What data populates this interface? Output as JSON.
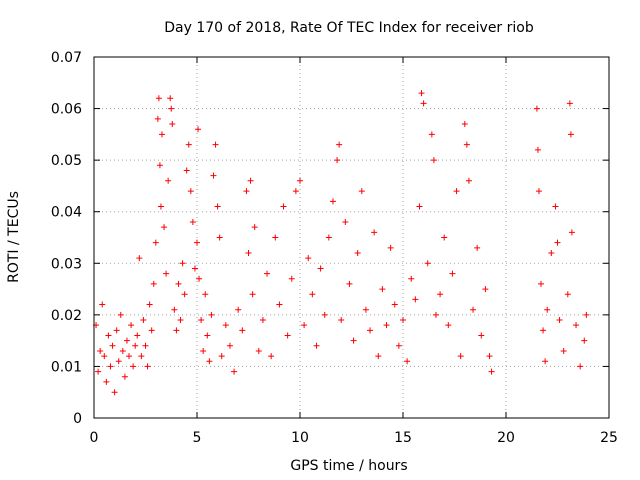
{
  "chart_data": {
    "type": "scatter",
    "title": "Day 170 of 2018, Rate Of TEC Index for receiver riob",
    "xlabel": "GPS time / hours",
    "ylabel": "ROTI / TECUs",
    "xlim": [
      0,
      25
    ],
    "ylim": [
      0,
      0.07
    ],
    "xticks": [
      0,
      5,
      10,
      15,
      20,
      25
    ],
    "xtick_labels": [
      "0",
      "5",
      "10",
      "15",
      "20",
      "25"
    ],
    "yticks": [
      0,
      0.01,
      0.02,
      0.03,
      0.04,
      0.05,
      0.06,
      0.07
    ],
    "ytick_labels": [
      "0",
      "0.01",
      "0.02",
      "0.03",
      "0.04",
      "0.05",
      "0.06",
      "0.07"
    ],
    "grid": true,
    "marker": "+",
    "color": "#ff0000",
    "data_gaps_hours": [
      [
        19.5,
        21.4
      ]
    ],
    "series": [
      {
        "name": "riob",
        "points": [
          [
            0.1,
            0.018
          ],
          [
            0.2,
            0.009
          ],
          [
            0.3,
            0.013
          ],
          [
            0.4,
            0.022
          ],
          [
            0.5,
            0.012
          ],
          [
            0.6,
            0.007
          ],
          [
            0.7,
            0.016
          ],
          [
            0.8,
            0.01
          ],
          [
            0.9,
            0.014
          ],
          [
            1.0,
            0.005
          ],
          [
            1.1,
            0.017
          ],
          [
            1.2,
            0.011
          ],
          [
            1.3,
            0.02
          ],
          [
            1.4,
            0.013
          ],
          [
            1.5,
            0.008
          ],
          [
            1.6,
            0.015
          ],
          [
            1.7,
            0.012
          ],
          [
            1.8,
            0.018
          ],
          [
            1.9,
            0.01
          ],
          [
            2.0,
            0.014
          ],
          [
            2.1,
            0.016
          ],
          [
            2.2,
            0.031
          ],
          [
            2.3,
            0.012
          ],
          [
            2.4,
            0.019
          ],
          [
            2.5,
            0.014
          ],
          [
            2.6,
            0.01
          ],
          [
            2.7,
            0.022
          ],
          [
            2.8,
            0.017
          ],
          [
            2.9,
            0.026
          ],
          [
            3.0,
            0.034
          ],
          [
            3.1,
            0.058
          ],
          [
            3.15,
            0.062
          ],
          [
            3.2,
            0.049
          ],
          [
            3.25,
            0.041
          ],
          [
            3.3,
            0.055
          ],
          [
            3.4,
            0.037
          ],
          [
            3.5,
            0.028
          ],
          [
            3.6,
            0.046
          ],
          [
            3.7,
            0.062
          ],
          [
            3.75,
            0.06
          ],
          [
            3.8,
            0.057
          ],
          [
            3.9,
            0.021
          ],
          [
            4.0,
            0.017
          ],
          [
            4.1,
            0.026
          ],
          [
            4.2,
            0.019
          ],
          [
            4.3,
            0.03
          ],
          [
            4.4,
            0.024
          ],
          [
            4.5,
            0.048
          ],
          [
            4.6,
            0.053
          ],
          [
            4.7,
            0.044
          ],
          [
            4.8,
            0.038
          ],
          [
            4.9,
            0.029
          ],
          [
            5.0,
            0.034
          ],
          [
            5.05,
            0.056
          ],
          [
            5.1,
            0.027
          ],
          [
            5.2,
            0.019
          ],
          [
            5.3,
            0.013
          ],
          [
            5.4,
            0.024
          ],
          [
            5.5,
            0.016
          ],
          [
            5.6,
            0.011
          ],
          [
            5.7,
            0.02
          ],
          [
            5.8,
            0.047
          ],
          [
            5.9,
            0.053
          ],
          [
            6.0,
            0.041
          ],
          [
            6.1,
            0.035
          ],
          [
            6.2,
            0.012
          ],
          [
            6.4,
            0.018
          ],
          [
            6.6,
            0.014
          ],
          [
            6.8,
            0.009
          ],
          [
            7.0,
            0.021
          ],
          [
            7.2,
            0.017
          ],
          [
            7.4,
            0.044
          ],
          [
            7.5,
            0.032
          ],
          [
            7.6,
            0.046
          ],
          [
            7.7,
            0.024
          ],
          [
            7.8,
            0.037
          ],
          [
            8.0,
            0.013
          ],
          [
            8.2,
            0.019
          ],
          [
            8.4,
            0.028
          ],
          [
            8.6,
            0.012
          ],
          [
            8.8,
            0.035
          ],
          [
            9.0,
            0.022
          ],
          [
            9.2,
            0.041
          ],
          [
            9.4,
            0.016
          ],
          [
            9.6,
            0.027
          ],
          [
            9.8,
            0.044
          ],
          [
            10.0,
            0.046
          ],
          [
            10.2,
            0.018
          ],
          [
            10.4,
            0.031
          ],
          [
            10.6,
            0.024
          ],
          [
            10.8,
            0.014
          ],
          [
            11.0,
            0.029
          ],
          [
            11.2,
            0.02
          ],
          [
            11.4,
            0.035
          ],
          [
            11.6,
            0.042
          ],
          [
            11.8,
            0.05
          ],
          [
            11.9,
            0.053
          ],
          [
            12.0,
            0.019
          ],
          [
            12.2,
            0.038
          ],
          [
            12.4,
            0.026
          ],
          [
            12.6,
            0.015
          ],
          [
            12.8,
            0.032
          ],
          [
            13.0,
            0.044
          ],
          [
            13.2,
            0.021
          ],
          [
            13.4,
            0.017
          ],
          [
            13.6,
            0.036
          ],
          [
            13.8,
            0.012
          ],
          [
            14.0,
            0.025
          ],
          [
            14.2,
            0.018
          ],
          [
            14.4,
            0.033
          ],
          [
            14.6,
            0.022
          ],
          [
            14.8,
            0.014
          ],
          [
            15.0,
            0.019
          ],
          [
            15.2,
            0.011
          ],
          [
            15.4,
            0.027
          ],
          [
            15.6,
            0.023
          ],
          [
            15.8,
            0.041
          ],
          [
            15.9,
            0.063
          ],
          [
            16.0,
            0.061
          ],
          [
            16.2,
            0.03
          ],
          [
            16.4,
            0.055
          ],
          [
            16.5,
            0.05
          ],
          [
            16.6,
            0.02
          ],
          [
            16.8,
            0.024
          ],
          [
            17.0,
            0.035
          ],
          [
            17.2,
            0.018
          ],
          [
            17.4,
            0.028
          ],
          [
            17.6,
            0.044
          ],
          [
            17.8,
            0.012
          ],
          [
            18.0,
            0.057
          ],
          [
            18.1,
            0.053
          ],
          [
            18.2,
            0.046
          ],
          [
            18.4,
            0.021
          ],
          [
            18.6,
            0.033
          ],
          [
            18.8,
            0.016
          ],
          [
            19.0,
            0.025
          ],
          [
            19.2,
            0.012
          ],
          [
            19.3,
            0.009
          ],
          [
            21.5,
            0.06
          ],
          [
            21.55,
            0.052
          ],
          [
            21.6,
            0.044
          ],
          [
            21.7,
            0.026
          ],
          [
            21.8,
            0.017
          ],
          [
            21.9,
            0.011
          ],
          [
            22.0,
            0.021
          ],
          [
            22.2,
            0.032
          ],
          [
            22.4,
            0.041
          ],
          [
            22.5,
            0.034
          ],
          [
            22.6,
            0.019
          ],
          [
            22.8,
            0.013
          ],
          [
            23.0,
            0.024
          ],
          [
            23.1,
            0.061
          ],
          [
            23.15,
            0.055
          ],
          [
            23.2,
            0.036
          ],
          [
            23.4,
            0.018
          ],
          [
            23.6,
            0.01
          ],
          [
            23.8,
            0.015
          ],
          [
            23.9,
            0.02
          ]
        ]
      }
    ]
  }
}
